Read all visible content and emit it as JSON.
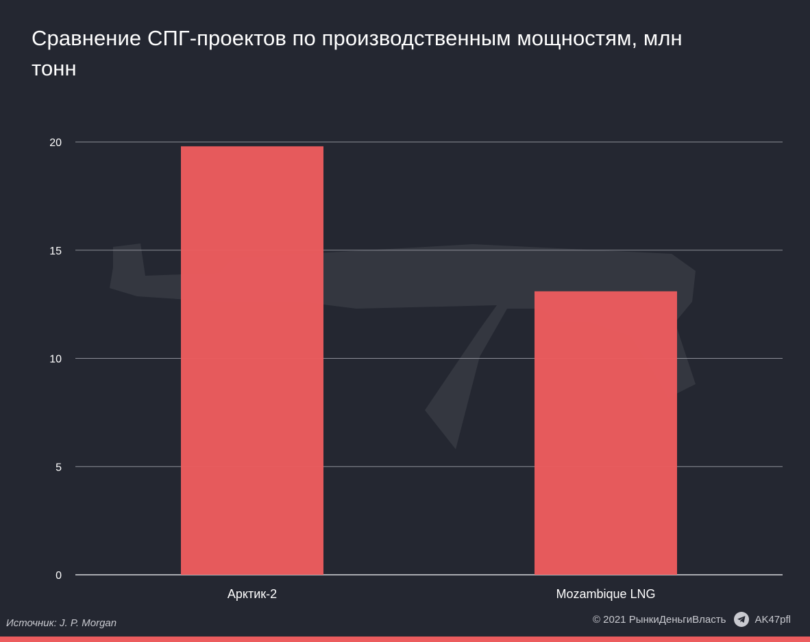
{
  "title": "Сравнение СПГ-проектов по производственным мощностям, млн тонн",
  "chart_data": {
    "type": "bar",
    "title": "Сравнение СПГ-проектов по производственным мощностям, млн тонн",
    "categories": [
      "Арктик-2",
      "Mozambique LNG"
    ],
    "values": [
      19.8,
      13.1
    ],
    "xlabel": "",
    "ylabel": "",
    "ylim": [
      0,
      20
    ],
    "yticks": [
      0,
      5,
      10,
      15,
      20
    ],
    "grid": true,
    "bar_color": "#ec5c5e"
  },
  "footer": {
    "source": "Источник: J. P. Morgan",
    "copyright": "© 2021 РынкиДеньгиВласть",
    "channel": "AK47pfl",
    "channel_icon": "telegram-icon"
  },
  "colors": {
    "background": "#242731",
    "accent": "#ec5c5e",
    "grid": "#8e9099",
    "text": "#ffffff"
  }
}
